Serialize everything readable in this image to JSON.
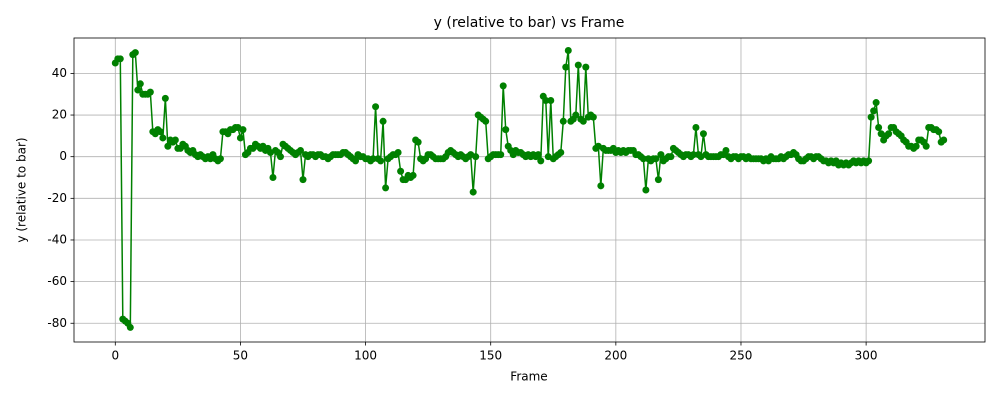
{
  "chart_data": {
    "type": "line",
    "title": "y (relative to bar) vs Frame",
    "xlabel": "Frame",
    "ylabel": "y (relative to bar)",
    "color": "#008000",
    "marker": true,
    "grid": true,
    "xlim": [
      -16.5,
      347.5
    ],
    "ylim": [
      -89,
      57
    ],
    "xticks": [
      0,
      50,
      100,
      150,
      200,
      250,
      300
    ],
    "yticks": [
      -80,
      -60,
      -40,
      -20,
      0,
      20,
      40
    ],
    "x": [
      0,
      1,
      2,
      3,
      4,
      5,
      6,
      7,
      8,
      9,
      10,
      11,
      12,
      13,
      14,
      15,
      16,
      17,
      18,
      19,
      20,
      21,
      22,
      23,
      24,
      25,
      26,
      27,
      28,
      29,
      30,
      31,
      32,
      33,
      34,
      35,
      36,
      37,
      38,
      39,
      40,
      41,
      42,
      43,
      44,
      45,
      46,
      47,
      48,
      49,
      50,
      51,
      52,
      53,
      54,
      55,
      56,
      57,
      58,
      59,
      60,
      61,
      62,
      63,
      64,
      65,
      66,
      67,
      68,
      69,
      70,
      71,
      72,
      73,
      74,
      75,
      76,
      77,
      78,
      79,
      80,
      81,
      82,
      83,
      84,
      85,
      86,
      87,
      88,
      89,
      90,
      91,
      92,
      93,
      94,
      95,
      96,
      97,
      98,
      99,
      100,
      101,
      102,
      103,
      104,
      105,
      106,
      107,
      108,
      109,
      110,
      111,
      112,
      113,
      114,
      115,
      116,
      117,
      118,
      119,
      120,
      121,
      122,
      123,
      124,
      125,
      126,
      127,
      128,
      129,
      130,
      131,
      132,
      133,
      134,
      135,
      136,
      137,
      138,
      139,
      140,
      141,
      142,
      143,
      144,
      145,
      146,
      147,
      148,
      149,
      150,
      151,
      152,
      153,
      154,
      155,
      156,
      157,
      158,
      159,
      160,
      161,
      162,
      163,
      164,
      165,
      166,
      167,
      168,
      169,
      170,
      171,
      172,
      173,
      174,
      175,
      176,
      177,
      178,
      179,
      180,
      181,
      182,
      183,
      184,
      185,
      186,
      187,
      188,
      189,
      190,
      191,
      192,
      193,
      194,
      195,
      196,
      197,
      198,
      199,
      200,
      201,
      202,
      203,
      204,
      205,
      206,
      207,
      208,
      209,
      210,
      211,
      212,
      213,
      214,
      215,
      216,
      217,
      218,
      219,
      220,
      221,
      222,
      223,
      224,
      225,
      226,
      227,
      228,
      229,
      230,
      231,
      232,
      233,
      234,
      235,
      236,
      237,
      238,
      239,
      240,
      241,
      242,
      243,
      244,
      245,
      246,
      247,
      248,
      249,
      250,
      251,
      252,
      253,
      254,
      255,
      256,
      257,
      258,
      259,
      260,
      261,
      262,
      263,
      264,
      265,
      266,
      267,
      268,
      269,
      270,
      271,
      272,
      273,
      274,
      275,
      276,
      277,
      278,
      279,
      280,
      281,
      282,
      283,
      284,
      285,
      286,
      287,
      288,
      289,
      290,
      291,
      292,
      293,
      294,
      295,
      296,
      297,
      298,
      299,
      300,
      301,
      302,
      303,
      304,
      305,
      306,
      307,
      308,
      309,
      310,
      311,
      312,
      313,
      314,
      315,
      316,
      317,
      318,
      319,
      320,
      321,
      322,
      323,
      324,
      325,
      326,
      327,
      328,
      329,
      330,
      331
    ],
    "values": [
      45,
      47,
      47,
      -78,
      -79,
      -80,
      -82,
      49,
      50,
      32,
      35,
      30,
      30,
      30,
      31,
      12,
      11,
      13,
      12,
      9,
      28,
      5,
      8,
      7,
      8,
      4,
      4,
      6,
      5,
      3,
      2,
      3,
      1,
      0,
      1,
      0,
      -1,
      0,
      -1,
      1,
      -1,
      -2,
      -1,
      12,
      12,
      11,
      13,
      13,
      14,
      14,
      9,
      13,
      1,
      2,
      4,
      4,
      6,
      5,
      4,
      5,
      3,
      4,
      2,
      -10,
      3,
      2,
      0,
      6,
      5,
      4,
      3,
      2,
      1,
      2,
      3,
      -11,
      1,
      0,
      1,
      1,
      0,
      1,
      1,
      0,
      0,
      -1,
      0,
      1,
      1,
      1,
      1,
      2,
      2,
      1,
      0,
      -1,
      -2,
      1,
      0,
      0,
      -1,
      -1,
      -2,
      -1,
      24,
      -1,
      -2,
      17,
      -15,
      -1,
      0,
      1,
      1,
      2,
      -7,
      -11,
      -11,
      -9,
      -10,
      -9,
      8,
      7,
      -1,
      -2,
      -1,
      1,
      1,
      0,
      -1,
      -1,
      -1,
      -1,
      0,
      2,
      3,
      2,
      1,
      0,
      1,
      0,
      -1,
      0,
      1,
      -17,
      0,
      20,
      19,
      18,
      17,
      -1,
      0,
      1,
      1,
      1,
      1,
      34,
      13,
      5,
      3,
      1,
      3,
      2,
      2,
      1,
      0,
      1,
      0,
      1,
      0,
      1,
      -2,
      29,
      27,
      0,
      27,
      -1,
      0,
      1,
      2,
      17,
      43,
      51,
      17,
      18,
      20,
      44,
      18,
      17,
      43,
      19,
      20,
      19,
      4,
      5,
      -14,
      4,
      3,
      3,
      3,
      4,
      2,
      3,
      2,
      3,
      2,
      3,
      3,
      3,
      1,
      1,
      0,
      -1,
      -16,
      -1,
      -2,
      -1,
      -1,
      -11,
      1,
      -2,
      -1,
      0,
      0,
      4,
      3,
      2,
      1,
      0,
      1,
      1,
      0,
      1,
      14,
      1,
      0,
      11,
      1,
      0,
      0,
      0,
      0,
      0,
      1,
      1,
      3,
      0,
      -1,
      0,
      0,
      -1,
      0,
      0,
      -1,
      0,
      -1,
      -1,
      -1,
      -1,
      -1,
      -2,
      -1,
      -2,
      0,
      -1,
      -1,
      -1,
      0,
      -1,
      0,
      1,
      1,
      2,
      1,
      -1,
      -2,
      -2,
      -1,
      0,
      0,
      -1,
      0,
      0,
      -1,
      -2,
      -2,
      -3,
      -2,
      -3,
      -2,
      -4,
      -3,
      -4,
      -3,
      -4,
      -3,
      -2,
      -3,
      -2,
      -3,
      -2,
      -3,
      -2,
      19,
      22,
      26,
      14,
      11,
      8,
      10,
      11,
      14,
      14,
      12,
      11,
      10,
      8,
      7,
      5,
      5,
      4,
      5,
      8,
      8,
      7,
      5,
      14,
      14,
      13,
      13,
      12,
      7,
      8
    ]
  }
}
